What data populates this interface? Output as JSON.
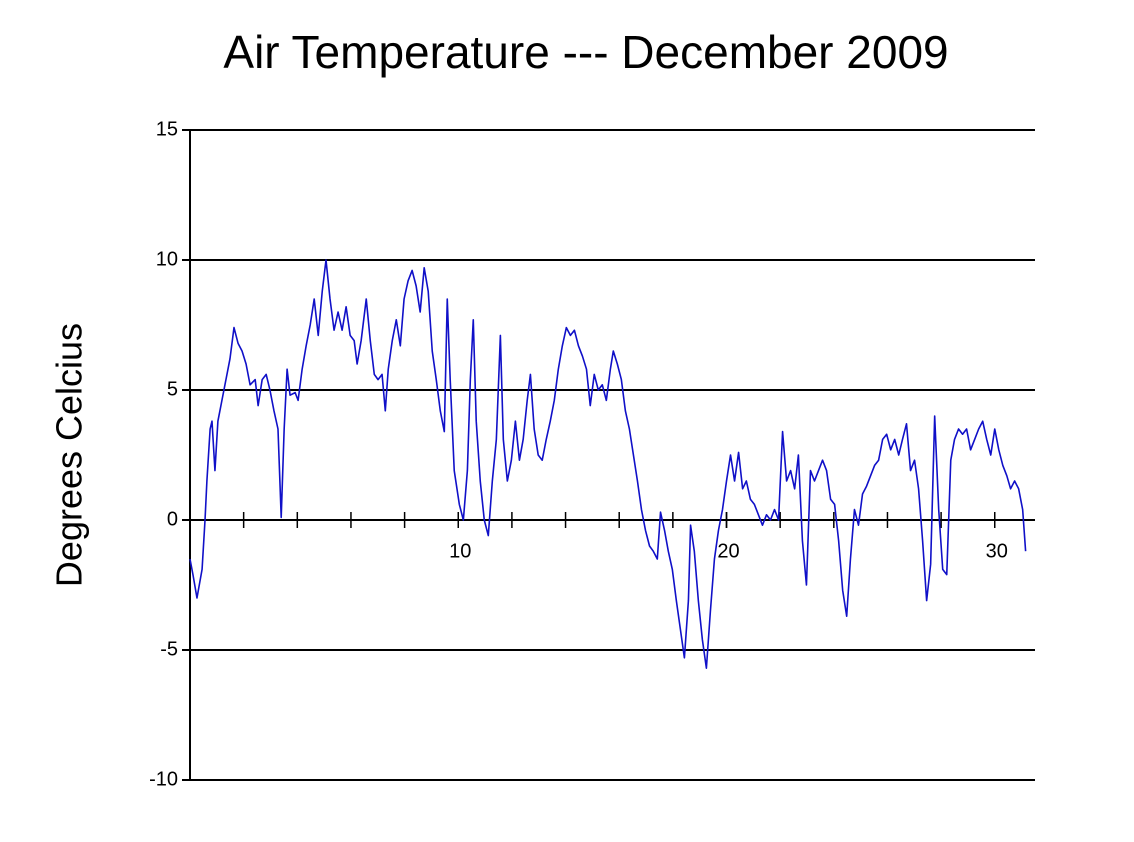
{
  "chart_data": {
    "type": "line",
    "title": "Air Temperature --- December 2009",
    "y_label": "Degrees Celcius",
    "xlim": [
      0,
      31.5
    ],
    "ylim": [
      -10,
      15
    ],
    "xticks": [
      10,
      20,
      30
    ],
    "xminor": [
      2,
      4,
      6,
      8,
      10,
      12,
      14,
      16,
      18,
      20,
      22,
      24,
      26,
      28,
      30
    ],
    "yticks": [
      -10,
      -5,
      0,
      5,
      10,
      15
    ],
    "grid": true,
    "series": [
      {
        "name": "Air Temperature",
        "color": "#1010c8",
        "x": [
          0,
          0.11,
          0.26,
          0.45,
          0.56,
          0.63,
          0.75,
          0.82,
          0.93,
          1.04,
          1.19,
          1.34,
          1.49,
          1.64,
          1.79,
          1.94,
          2.09,
          2.24,
          2.43,
          2.54,
          2.69,
          2.84,
          2.98,
          3.13,
          3.28,
          3.4,
          3.51,
          3.62,
          3.73,
          3.92,
          4.03,
          4.18,
          4.33,
          4.48,
          4.63,
          4.78,
          4.93,
          5.07,
          5.22,
          5.37,
          5.52,
          5.67,
          5.82,
          5.97,
          6.12,
          6.23,
          6.38,
          6.57,
          6.72,
          6.87,
          7.01,
          7.16,
          7.28,
          7.39,
          7.54,
          7.69,
          7.84,
          7.98,
          8.13,
          8.28,
          8.43,
          8.58,
          8.73,
          8.88,
          9.03,
          9.18,
          9.33,
          9.48,
          9.59,
          9.7,
          9.85,
          10.04,
          10.19,
          10.34,
          10.45,
          10.56,
          10.67,
          10.82,
          10.97,
          11.12,
          11.27,
          11.42,
          11.57,
          11.68,
          11.83,
          11.98,
          12.13,
          12.28,
          12.42,
          12.57,
          12.69,
          12.83,
          12.98,
          13.13,
          13.28,
          13.43,
          13.58,
          13.73,
          13.88,
          14.03,
          14.18,
          14.33,
          14.48,
          14.63,
          14.78,
          14.92,
          15.07,
          15.22,
          15.37,
          15.52,
          15.67,
          15.78,
          15.93,
          16.08,
          16.23,
          16.38,
          16.53,
          16.68,
          16.83,
          16.98,
          17.13,
          17.27,
          17.42,
          17.54,
          17.69,
          17.83,
          17.98,
          18.13,
          18.28,
          18.43,
          18.58,
          18.66,
          18.8,
          18.95,
          19.1,
          19.25,
          19.4,
          19.55,
          19.7,
          19.85,
          20.0,
          20.15,
          20.3,
          20.45,
          20.6,
          20.74,
          20.89,
          21.04,
          21.19,
          21.34,
          21.49,
          21.64,
          21.79,
          21.94,
          22.09,
          22.24,
          22.39,
          22.54,
          22.68,
          22.83,
          22.98,
          23.13,
          23.28,
          23.43,
          23.58,
          23.73,
          23.88,
          24.03,
          24.18,
          24.33,
          24.48,
          24.62,
          24.77,
          24.92,
          25.07,
          25.22,
          25.37,
          25.52,
          25.67,
          25.82,
          25.97,
          26.12,
          26.27,
          26.42,
          26.56,
          26.71,
          26.86,
          27.01,
          27.16,
          27.31,
          27.46,
          27.61,
          27.76,
          27.91,
          28.06,
          28.21,
          28.36,
          28.5,
          28.65,
          28.8,
          28.95,
          29.1,
          29.25,
          29.4,
          29.55,
          29.7,
          29.85,
          30.0,
          30.15,
          30.3,
          30.45,
          30.59,
          30.74,
          30.89,
          31.04,
          31.15
        ],
        "values": [
          -1.5,
          -2.1,
          -3.0,
          -1.9,
          0,
          1.5,
          3.5,
          3.8,
          1.9,
          3.8,
          4.6,
          5.4,
          6.2,
          7.4,
          6.8,
          6.5,
          6.0,
          5.2,
          5.4,
          4.4,
          5.4,
          5.6,
          5.0,
          4.2,
          3.5,
          0.1,
          3.5,
          5.8,
          4.8,
          4.9,
          4.6,
          5.8,
          6.7,
          7.5,
          8.5,
          7.1,
          8.8,
          10.0,
          8.5,
          7.3,
          8.0,
          7.3,
          8.2,
          7.1,
          6.9,
          6.0,
          6.9,
          8.5,
          6.9,
          5.6,
          5.4,
          5.6,
          4.2,
          5.8,
          6.9,
          7.7,
          6.7,
          8.5,
          9.2,
          9.6,
          9.0,
          8.0,
          9.7,
          8.8,
          6.5,
          5.4,
          4.2,
          3.4,
          8.5,
          5.4,
          1.9,
          0.6,
          0,
          1.9,
          5.4,
          7.7,
          3.8,
          1.5,
          0,
          -0.6,
          1.5,
          3.1,
          7.1,
          3.1,
          1.5,
          2.3,
          3.8,
          2.3,
          3.1,
          4.6,
          5.6,
          3.5,
          2.5,
          2.3,
          3.1,
          3.8,
          4.6,
          5.8,
          6.7,
          7.4,
          7.1,
          7.3,
          6.7,
          6.3,
          5.8,
          4.4,
          5.6,
          5.0,
          5.2,
          4.6,
          5.8,
          6.5,
          6.0,
          5.4,
          4.2,
          3.5,
          2.5,
          1.5,
          0.4,
          -0.4,
          -1.0,
          -1.2,
          -1.5,
          0.3,
          -0.4,
          -1.2,
          -1.9,
          -3.1,
          -4.2,
          -5.3,
          -3.1,
          -0.2,
          -1.2,
          -3.1,
          -4.6,
          -5.7,
          -3.5,
          -1.5,
          -0.4,
          0.4,
          1.5,
          2.5,
          1.5,
          2.6,
          1.2,
          1.5,
          0.8,
          0.6,
          0.2,
          -0.2,
          0.2,
          0,
          0.4,
          0,
          3.4,
          1.5,
          1.9,
          1.2,
          2.5,
          -0.8,
          -2.5,
          1.9,
          1.5,
          1.9,
          2.3,
          1.9,
          0.8,
          0.6,
          -0.8,
          -2.7,
          -3.7,
          -1.5,
          0.4,
          -0.2,
          1.0,
          1.3,
          1.7,
          2.1,
          2.3,
          3.1,
          3.3,
          2.7,
          3.1,
          2.5,
          3.1,
          3.7,
          1.9,
          2.3,
          1.2,
          -0.8,
          -3.1,
          -1.7,
          4.0,
          0.4,
          -1.9,
          -2.1,
          2.3,
          3.1,
          3.5,
          3.3,
          3.5,
          2.7,
          3.1,
          3.5,
          3.8,
          3.1,
          2.5,
          3.5,
          2.7,
          2.1,
          1.7,
          1.2,
          1.5,
          1.2,
          0.4,
          -1.2
        ]
      }
    ]
  }
}
